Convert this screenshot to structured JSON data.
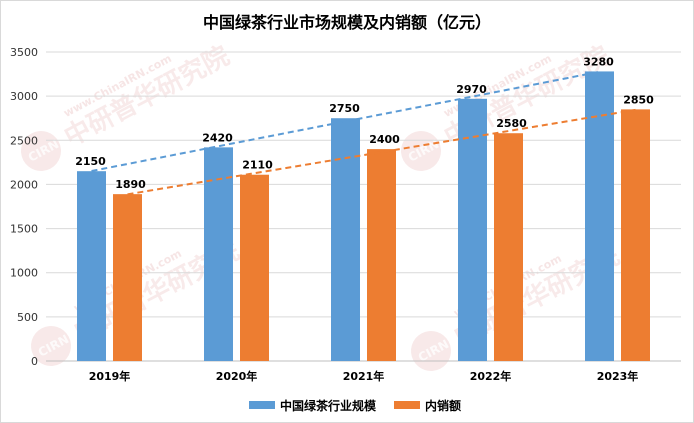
{
  "chart_data": {
    "type": "bar",
    "title": "中国绿茶行业市场规模及内销额（亿元）",
    "categories": [
      "2019年",
      "2020年",
      "2021年",
      "2022年",
      "2023年"
    ],
    "series": [
      {
        "name": "中国绿茶行业规模",
        "values": [
          2150,
          2420,
          2750,
          2970,
          3280
        ],
        "color": "#5b9bd5",
        "trendline": true
      },
      {
        "name": "内销额",
        "values": [
          1890,
          2110,
          2400,
          2580,
          2850
        ],
        "color": "#ed7d31",
        "trendline": true
      }
    ],
    "ylim": [
      0,
      3500
    ],
    "yticks": [
      0,
      500,
      1000,
      1500,
      2000,
      2500,
      3000,
      3500
    ],
    "grid": true,
    "legend": "bottom"
  },
  "watermark": {
    "brand": "中研普华研究院",
    "url": "www.ChinaIRN.com",
    "logo": "CIRN"
  }
}
